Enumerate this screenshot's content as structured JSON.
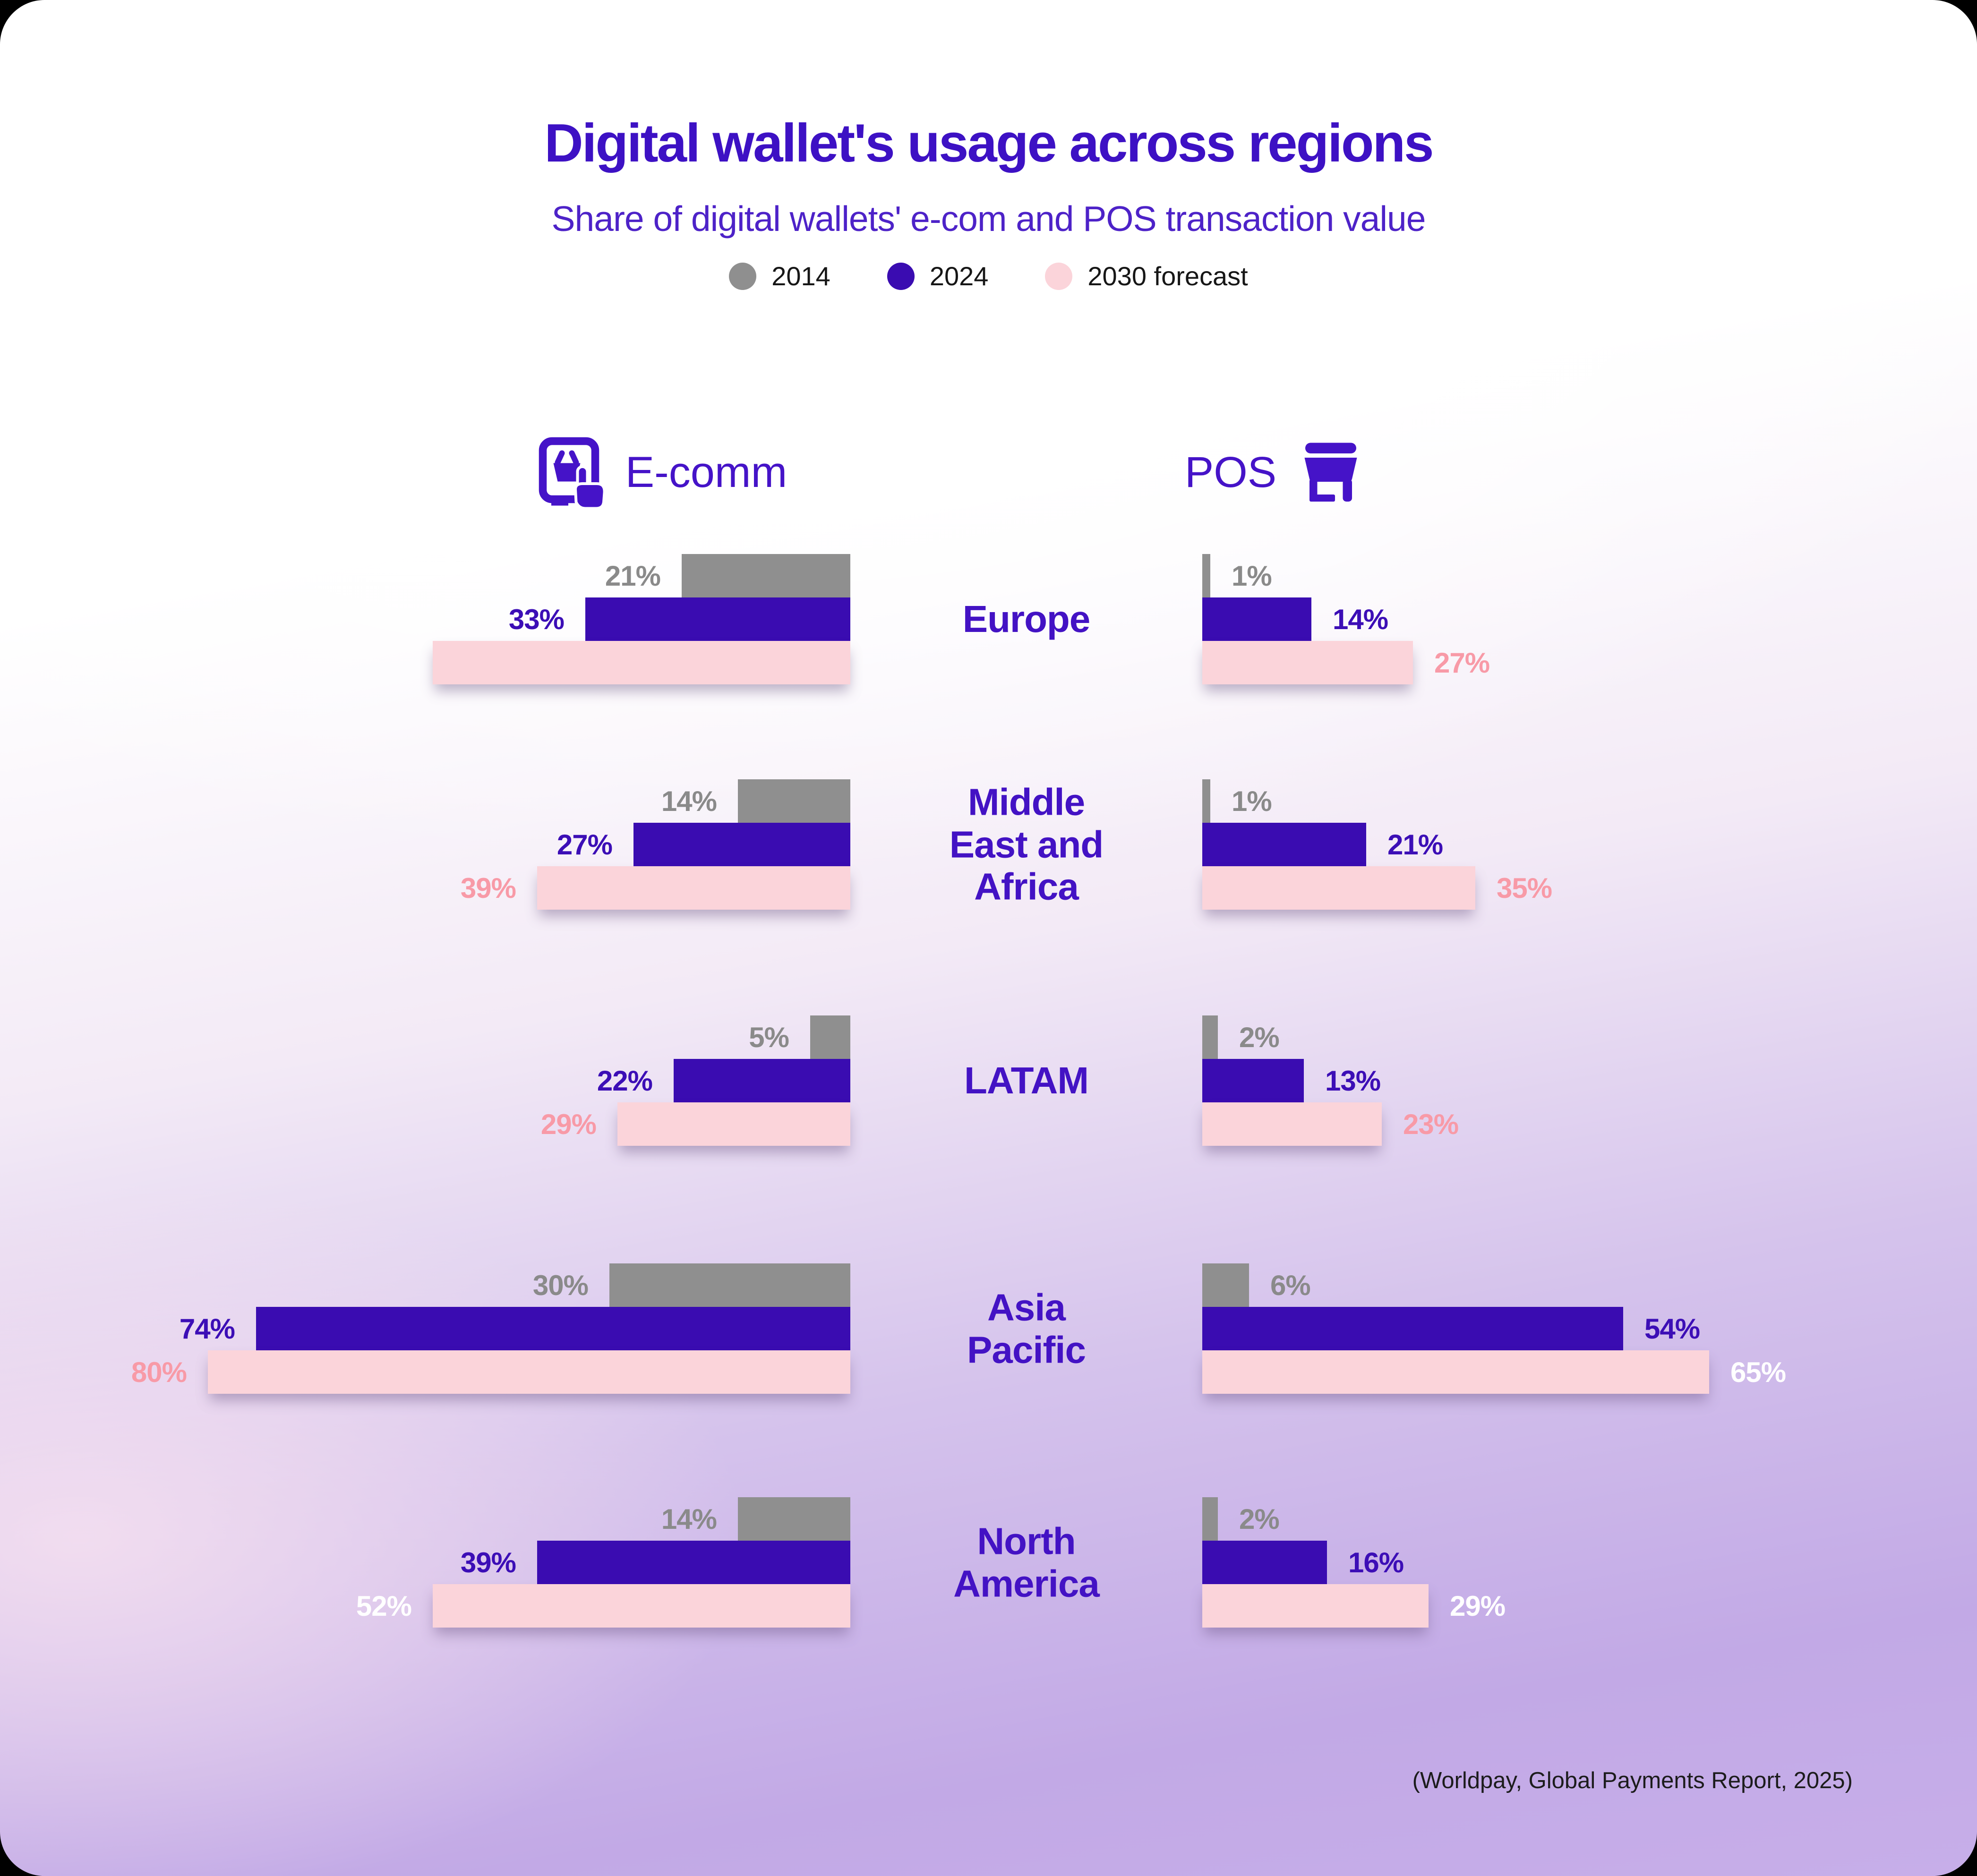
{
  "title": "Digital wallet's usage across regions",
  "subtitle": "Share of digital wallets' e-com and POS transaction value",
  "legend": [
    {
      "label": "2014",
      "color": "#8f8f8f"
    },
    {
      "label": "2024",
      "color": "#3a0cb1"
    },
    {
      "label": "2030 forecast",
      "color": "#fbd4da"
    }
  ],
  "columns": {
    "ecomm": {
      "label": "E-comm",
      "icon": "tablet-shopping-icon"
    },
    "pos": {
      "label": "POS",
      "icon": "storefront-icon"
    }
  },
  "source": "(Worldpay, Global Payments Report, 2025)",
  "colors": {
    "bar_2014": "#8f8f8f",
    "bar_2024": "#3a0cb1",
    "bar_2030": "#fbd4da",
    "accent_purple": "#3d11c4",
    "label_gray": "#8a8a8a",
    "label_purple": "#3c0eb6",
    "label_salmon": "#f89aa7",
    "label_white": "#ffffff",
    "background_lavender": "#c4ace7"
  },
  "chart_data": {
    "type": "bar",
    "orientation": "horizontal",
    "unit": "percent",
    "series_names": [
      "2014",
      "2024",
      "2030 forecast"
    ],
    "groups": [
      "E-comm",
      "POS"
    ],
    "regions": [
      {
        "name": "Europe",
        "name_lines": [
          "Europe"
        ],
        "ecomm": [
          {
            "series": "2014",
            "value": 21,
            "label": "21%",
            "label_color": "#8a8a8a"
          },
          {
            "series": "2024",
            "value": 33,
            "label": "33%",
            "label_color": "#3c0eb6"
          },
          {
            "series": "2030 forecast",
            "value": 52,
            "label": "",
            "label_color": "#f89aa7"
          }
        ],
        "pos": [
          {
            "series": "2014",
            "value": 1,
            "label": "1%",
            "label_color": "#8a8a8a"
          },
          {
            "series": "2024",
            "value": 14,
            "label": "14%",
            "label_color": "#3c0eb6"
          },
          {
            "series": "2030 forecast",
            "value": 27,
            "label": "27%",
            "label_color": "#f89aa7"
          }
        ]
      },
      {
        "name": "Middle East and Africa",
        "name_lines": [
          "Middle",
          "East and",
          "Africa"
        ],
        "ecomm": [
          {
            "series": "2014",
            "value": 14,
            "label": "14%",
            "label_color": "#8a8a8a"
          },
          {
            "series": "2024",
            "value": 27,
            "label": "27%",
            "label_color": "#3c0eb6"
          },
          {
            "series": "2030 forecast",
            "value": 39,
            "label": "39%",
            "label_color": "#f89aa7"
          }
        ],
        "pos": [
          {
            "series": "2014",
            "value": 1,
            "label": "1%",
            "label_color": "#8a8a8a"
          },
          {
            "series": "2024",
            "value": 21,
            "label": "21%",
            "label_color": "#3c0eb6"
          },
          {
            "series": "2030 forecast",
            "value": 35,
            "label": "35%",
            "label_color": "#f89aa7"
          }
        ]
      },
      {
        "name": "LATAM",
        "name_lines": [
          "LATAM"
        ],
        "ecomm": [
          {
            "series": "2014",
            "value": 5,
            "label": "5%",
            "label_color": "#8a8a8a"
          },
          {
            "series": "2024",
            "value": 22,
            "label": "22%",
            "label_color": "#3c0eb6"
          },
          {
            "series": "2030 forecast",
            "value": 29,
            "label": "29%",
            "label_color": "#f89aa7"
          }
        ],
        "pos": [
          {
            "series": "2014",
            "value": 2,
            "label": "2%",
            "label_color": "#8a8a8a"
          },
          {
            "series": "2024",
            "value": 13,
            "label": "13%",
            "label_color": "#3c0eb6"
          },
          {
            "series": "2030 forecast",
            "value": 23,
            "label": "23%",
            "label_color": "#f89aa7"
          }
        ]
      },
      {
        "name": "Asia Pacific",
        "name_lines": [
          "Asia",
          "Pacific"
        ],
        "ecomm": [
          {
            "series": "2014",
            "value": 30,
            "label": "30%",
            "label_color": "#8a8a8a"
          },
          {
            "series": "2024",
            "value": 74,
            "label": "74%",
            "label_color": "#3c0eb6"
          },
          {
            "series": "2030 forecast",
            "value": 80,
            "label": "80%",
            "label_color": "#f89aa7"
          }
        ],
        "pos": [
          {
            "series": "2014",
            "value": 6,
            "label": "6%",
            "label_color": "#8a8a8a"
          },
          {
            "series": "2024",
            "value": 54,
            "label": "54%",
            "label_color": "#3c0eb6"
          },
          {
            "series": "2030 forecast",
            "value": 65,
            "label": "65%",
            "label_color": "#ffffff"
          }
        ]
      },
      {
        "name": "North America",
        "name_lines": [
          "North",
          "America"
        ],
        "ecomm": [
          {
            "series": "2014",
            "value": 14,
            "label": "14%",
            "label_color": "#8a8a8a"
          },
          {
            "series": "2024",
            "value": 39,
            "label": "39%",
            "label_color": "#3c0eb6"
          },
          {
            "series": "2030 forecast",
            "value": 52,
            "label": "52%",
            "label_color": "#ffffff"
          }
        ],
        "pos": [
          {
            "series": "2014",
            "value": 2,
            "label": "2%",
            "label_color": "#8a8a8a"
          },
          {
            "series": "2024",
            "value": 16,
            "label": "16%",
            "label_color": "#3c0eb6"
          },
          {
            "series": "2030 forecast",
            "value": 29,
            "label": "29%",
            "label_color": "#ffffff"
          }
        ]
      }
    ]
  }
}
